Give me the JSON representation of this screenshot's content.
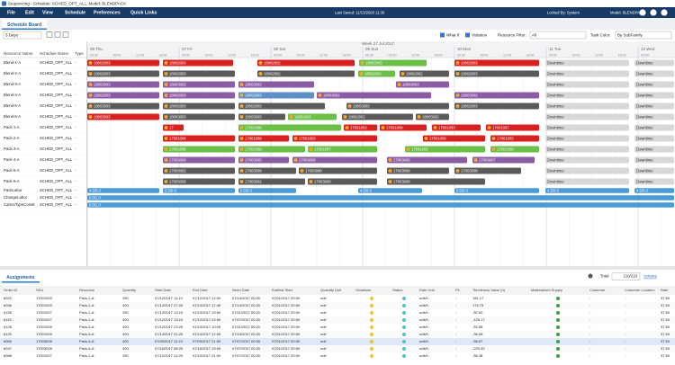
{
  "window_title": "Sequencing - Schedule: SCHED_OPT_ALL, Model: BLENDPACK",
  "menu": [
    "File",
    "Edit",
    "View",
    "Schedule",
    "Preferences",
    "Quick Links"
  ],
  "status": {
    "last_saved": "Last Saved: 11/13/2020 11:30",
    "locked_by": "Locked By: System",
    "model": "Model: BLENDPACK"
  },
  "tab": "Schedule Board",
  "toolbar": {
    "range": "3 Days",
    "what_if": "What If",
    "violation": "Violation",
    "resource_filter_label": "Resource Filter:",
    "resource_filter": "All",
    "task_color_label": "Task Color:",
    "task_color": "By SubFamily"
  },
  "resource_columns": [
    "Resource Name",
    "Schedule Name",
    "Type"
  ],
  "timeline": {
    "week": "Week 27 Jul 2017",
    "days": [
      "06 Thu",
      "07 Fri",
      "08 Sat",
      "09 Sun",
      "10 Mon",
      "11 Tue",
      "12 Wed"
    ],
    "hours": [
      "00:00",
      "06:00",
      "12:00",
      "18:00"
    ]
  },
  "resources": [
    {
      "name": "Blend-1-A",
      "schedule": "SCHED_OPT_ALL",
      "type": "-",
      "tasks": [
        "18002003",
        "18002003",
        "18002002",
        "18002003",
        "18002003",
        "Downtime",
        "Downtime"
      ]
    },
    {
      "name": "Blend-2-A",
      "schedule": "SCHED_OPT_ALL",
      "type": "-",
      "tasks": [
        "18002003",
        "18002003",
        "18002002",
        "18002003",
        "18002002",
        "18002003",
        "Downtime",
        "Downtime"
      ]
    },
    {
      "name": "Blend-3-A",
      "schedule": "SCHED_OPT_ALL",
      "type": "-",
      "tasks": [
        "18003003",
        "18003002",
        "18003003",
        "18003003",
        "Downtime",
        "Downtime"
      ]
    },
    {
      "name": "Blend-4-A",
      "schedule": "SCHED_OPT_ALL",
      "type": "-",
      "tasks": [
        "18002003",
        "18002003",
        "18002003",
        "18003002",
        "18003002",
        "Downtime",
        "Downtime"
      ]
    },
    {
      "name": "Blend-5-A",
      "schedule": "SCHED_OPT_ALL",
      "type": "-",
      "tasks": [
        "18003003",
        "18002003",
        "18002003",
        "18003003",
        "18002003",
        "Downtime",
        "Downtime"
      ]
    },
    {
      "name": "Blend-6-A",
      "schedule": "SCHED_OPT_ALL",
      "type": "-",
      "tasks": [
        "18003003",
        "18003003",
        "18003003",
        "18002003",
        "18002002",
        "18003002",
        "Downtime",
        "Downtime"
      ]
    },
    {
      "name": "Pack-1-A",
      "schedule": "SCHED_OPT_ALL",
      "type": "-",
      "tasks": [
        "17",
        "17001006",
        "17001003",
        "17001009",
        "17001003",
        "17001007",
        "Downtime",
        "Downtime"
      ]
    },
    {
      "name": "Pack-2-A",
      "schedule": "SCHED_OPT_ALL",
      "type": "-",
      "tasks": [
        "17001006",
        "17001009",
        "17001003",
        "17001009",
        "17001003",
        "Downtime",
        "Downtime"
      ]
    },
    {
      "name": "Pack-3-A",
      "schedule": "SCHED_OPT_ALL",
      "type": "-",
      "tasks": [
        "17001008",
        "17001009",
        "17001007",
        "17001008",
        "17001009",
        "Downtime",
        "Downtime"
      ]
    },
    {
      "name": "Pack-4-A",
      "schedule": "SCHED_OPT_ALL",
      "type": "-",
      "tasks": [
        "17003009",
        "17003005",
        "17003009",
        "17003006",
        "17003007",
        "Downtime",
        "Downtime"
      ]
    },
    {
      "name": "Pack-5-A",
      "schedule": "SCHED_OPT_ALL",
      "type": "-",
      "tasks": [
        "17003002",
        "17003009",
        "17003008",
        "17003009",
        "17003008",
        "Downtime",
        "Downtime"
      ]
    },
    {
      "name": "Pack-6-A",
      "schedule": "SCHED_OPT_ALL",
      "type": "-",
      "tasks": [
        "17003009",
        "17003002",
        "17003009",
        "17003008",
        "Downtime",
        "Downtime"
      ]
    },
    {
      "name": "PackLabor",
      "schedule": "SCHED_OPT_ALL",
      "type": "-",
      "tasks": [
        "4.5/5.0",
        "5.5/6.0",
        "5.5/6.0",
        "4.5/5.0",
        "5.5/6.0",
        "4.5/5.0",
        "4.5/5.0"
      ]
    },
    {
      "name": "ChangeLabor",
      "schedule": "SCHED_OPT_ALL",
      "type": "-",
      "tasks": [
        "0.0/1.0"
      ]
    },
    {
      "name": "CartonTypeConstr",
      "schedule": "SCHED_OPT_ALL",
      "type": "-",
      "tasks": [
        "0.0/1.0"
      ]
    }
  ],
  "assignments": {
    "tab": "Assignments",
    "total_label": "Total",
    "total": "210/210",
    "actions": "Actions",
    "columns": [
      "Order ID",
      "SKU",
      "Resource",
      "Quantity",
      "Start Date",
      "End Date",
      "Need Date",
      "Earliest Start",
      "Quantity Unit",
      "Violations",
      "Status",
      "Rate Unit",
      "Fit",
      "Timeliness Value (h)",
      "Materialised Supply",
      "Customer",
      "Customer Location",
      "Rate"
    ],
    "rows": [
      [
        "6022",
        "17001003",
        "Pack-1-A",
        "250",
        "07/12/2017 11:10",
        "07/12/2017 12:00",
        "07/14/2017 00:00",
        "07/01/2017 00:00",
        "unit",
        "unit/h",
        "-",
        "181.17",
        "-",
        "-",
        "37.50"
      ],
      [
        "6036",
        "17001003",
        "Pack-2-A",
        "400",
        "07/13/2017 07:00",
        "07/13/2017 17:40",
        "07/14/2017 00:00",
        "07/01/2017 00:00",
        "unit",
        "unit/h",
        "-",
        "179.75",
        "-",
        "-",
        "37.50"
      ],
      [
        "6155",
        "17001007",
        "Pack-1-A",
        "250",
        "07/13/2017 13:10",
        "07/13/2017 19:50",
        "07/11/2017 00:00",
        "07/01/2017 00:00",
        "unit",
        "unit/h",
        "-",
        "-50.50",
        "-",
        "-",
        "37.50"
      ],
      [
        "6115",
        "17001007",
        "Pack-1-A",
        "400",
        "07/12/2017 13:10",
        "07/12/2017 23:50",
        "07/07/2017 00:00",
        "07/01/2017 00:00",
        "unit",
        "unit/h",
        "-",
        "-128.17",
        "-",
        "-",
        "37.50"
      ],
      [
        "6128",
        "17001009",
        "Pack-5-A",
        "400",
        "07/12/2017 23:25",
        "07/13/2017 10:05",
        "07/11/2017 00:00",
        "07/01/2017 00:00",
        "unit",
        "unit/h",
        "-",
        "-53.58",
        "-",
        "-",
        "37.50"
      ],
      [
        "6129",
        "17001009",
        "Pack-5-A",
        "400",
        "07/14/2017 01:25",
        "07/14/2017 12:05",
        "07/13/2017 00:00",
        "07/01/2017 00:00",
        "unit",
        "unit/h",
        "-",
        "-36.08",
        "-",
        "-",
        "37.50"
      ],
      [
        "6069",
        "17003006",
        "Pack-4-A",
        "400",
        "07/09/2017 11:10",
        "07/09/2017 21:50",
        "07/07/2017 00:00",
        "07/01/2017 00:00",
        "unit",
        "unit/h",
        "-",
        "-58.67",
        "-",
        "-",
        "37.50"
      ],
      [
        "6047",
        "17003006",
        "Pack-4-A",
        "400",
        "07/16/2017 08:25",
        "07/16/2017 19:05",
        "07/07/2017 00:00",
        "07/01/2017 00:00",
        "unit",
        "unit/h",
        "-",
        "-220.42",
        "-",
        "-",
        "37.50"
      ],
      [
        "6088",
        "17001007",
        "Pack-1-A",
        "250",
        "07/10/2017 14:20",
        "07/10/2017 21:00",
        "07/07/2017 00:00",
        "07/01/2017 00:00",
        "unit",
        "unit/h",
        "-",
        "-56.38",
        "-",
        "-",
        "37.50"
      ]
    ]
  }
}
